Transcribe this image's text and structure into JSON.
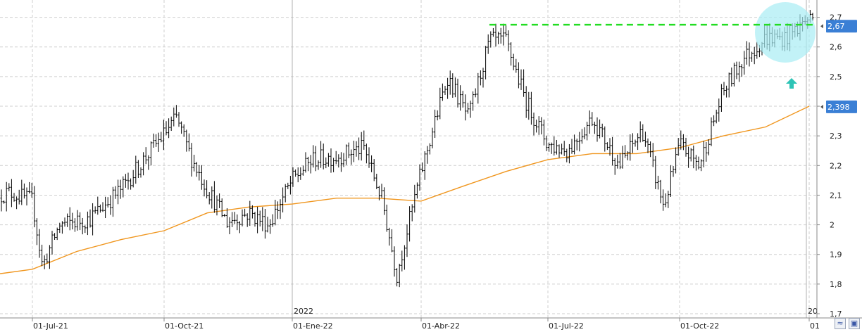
{
  "chart_data": {
    "type": "line",
    "subtype": "ohlc-bars",
    "title": "",
    "xlabel": "",
    "ylabel": "",
    "y_range": [
      1.7,
      2.72
    ],
    "y_ticks": [
      "2,7",
      "2,6",
      "2,5",
      "2,4",
      "2,3",
      "2,2",
      "2,1",
      "2",
      "1,9",
      "1,8",
      "1,7"
    ],
    "x_ticks": [
      "01-Jul-21",
      "01-Oct-21",
      "01-Ene-22",
      "01-Abr-22",
      "01-Jul-22",
      "01-Oct-22",
      "01"
    ],
    "year_labels": [
      "2022",
      "20"
    ],
    "grid": true,
    "series": [
      {
        "type": "ohlc",
        "color": "#000000",
        "x": [
          "2021-06-01",
          "2021-06-15",
          "2021-07-01",
          "2021-07-08",
          "2021-07-20",
          "2021-08-10",
          "2021-09-01",
          "2021-09-20",
          "2021-10-10",
          "2021-10-20",
          "2021-11-01",
          "2021-11-15",
          "2021-12-01",
          "2021-12-15",
          "2022-01-01",
          "2022-01-15",
          "2022-02-01",
          "2022-02-20",
          "2022-03-05",
          "2022-03-15",
          "2022-03-25",
          "2022-04-01",
          "2022-04-20",
          "2022-05-05",
          "2022-05-20",
          "2022-06-01",
          "2022-06-15",
          "2022-07-01",
          "2022-07-15",
          "2022-08-01",
          "2022-08-20",
          "2022-09-05",
          "2022-09-20",
          "2022-10-01",
          "2022-10-15",
          "2022-11-01",
          "2022-11-15",
          "2022-12-01",
          "2022-12-15",
          "2023-01-01"
        ],
        "values": [
          2.09,
          2.11,
          2.08,
          1.86,
          2.0,
          2.02,
          2.12,
          2.24,
          2.36,
          2.23,
          2.12,
          2.01,
          2.04,
          2.0,
          2.15,
          2.22,
          2.23,
          2.26,
          2.08,
          1.83,
          2.04,
          2.18,
          2.5,
          2.36,
          2.62,
          2.62,
          2.42,
          2.27,
          2.25,
          2.36,
          2.2,
          2.32,
          2.06,
          2.27,
          2.2,
          2.45,
          2.56,
          2.63,
          2.63,
          2.7
        ]
      },
      {
        "name": "",
        "type": "moving-average",
        "color": "#f0961e",
        "x": [
          "2021-06-01",
          "2021-07-01",
          "2021-08-01",
          "2021-09-01",
          "2021-10-01",
          "2021-11-01",
          "2021-12-01",
          "2022-01-01",
          "2022-02-01",
          "2022-03-01",
          "2022-04-01",
          "2022-05-01",
          "2022-06-01",
          "2022-07-01",
          "2022-08-01",
          "2022-09-01",
          "2022-10-01",
          "2022-11-01",
          "2022-12-01",
          "2023-01-01"
        ],
        "values": [
          1.83,
          1.85,
          1.91,
          1.95,
          1.98,
          2.04,
          2.06,
          2.07,
          2.09,
          2.09,
          2.08,
          2.13,
          2.18,
          2.22,
          2.24,
          2.24,
          2.26,
          2.3,
          2.33,
          2.4
        ]
      }
    ],
    "annotations": {
      "resistance_level": 2.675,
      "resistance_color": "#22dd22",
      "resistance_start": "2022-05-20",
      "circle_color": "#a8ecf4",
      "arrow_color": "#2ec4b6"
    },
    "price_badges": [
      {
        "label": "2,67",
        "value": 2.67,
        "color": "#3a7fd5"
      },
      {
        "label": "2,398",
        "value": 2.398,
        "color": "#3a7fd5"
      }
    ]
  }
}
